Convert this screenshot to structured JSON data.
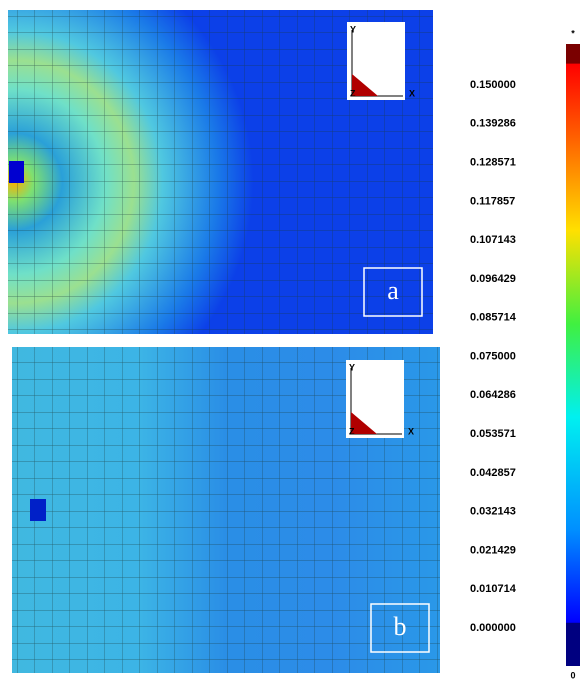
{
  "panels": [
    {
      "label": "a",
      "axes": {
        "y": "Y",
        "x": "X",
        "z": "Z"
      }
    },
    {
      "label": "b",
      "axes": {
        "y": "Y",
        "x": "X",
        "z": "Z"
      }
    }
  ],
  "colorbar": {
    "top": "*",
    "bottom": "0",
    "ticks": [
      "0.150000",
      "0.139286",
      "0.128571",
      "0.117857",
      "0.107143",
      "0.096429",
      "0.085714",
      "0.075000",
      "0.064286",
      "0.053571",
      "0.042857",
      "0.032143",
      "0.021429",
      "0.010714",
      "0.000000"
    ]
  }
}
